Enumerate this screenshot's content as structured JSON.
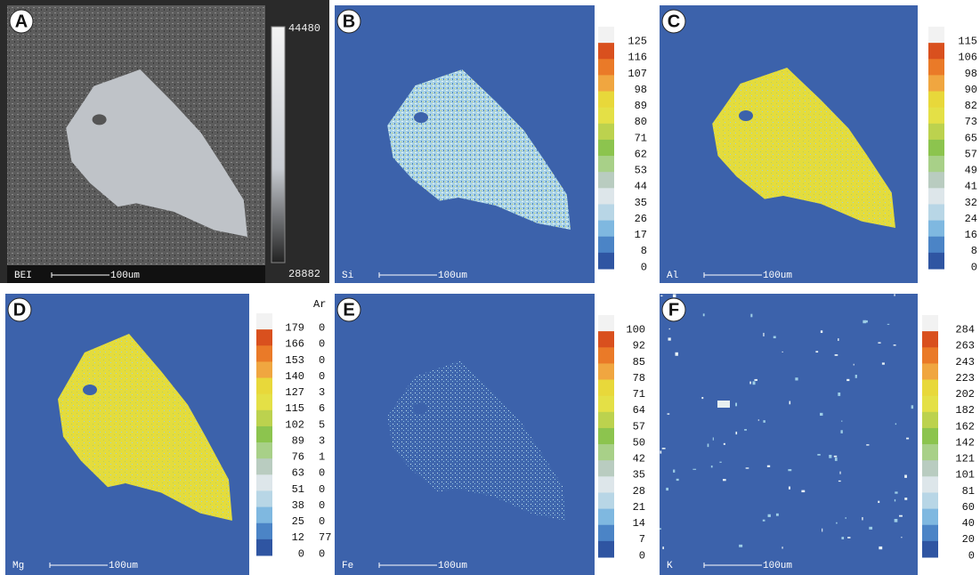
{
  "panels": [
    {
      "label": "A",
      "element": "BEI",
      "scale": "100um",
      "colorbar": [
        "44480",
        "28882"
      ]
    },
    {
      "label": "B",
      "element": "Si",
      "scale": "100um",
      "colorbar": [
        "125",
        "116",
        "107",
        "98",
        "89",
        "80",
        "71",
        "62",
        "53",
        "44",
        "35",
        "26",
        "17",
        "8",
        "0"
      ]
    },
    {
      "label": "C",
      "element": "Al",
      "scale": "100um",
      "colorbar": [
        "115",
        "106",
        "98",
        "90",
        "82",
        "73",
        "65",
        "57",
        "49",
        "41",
        "32",
        "24",
        "16",
        "8",
        "0"
      ]
    },
    {
      "label": "D",
      "element": "Mg",
      "scale": "100um",
      "colorbar": [
        "179",
        "166",
        "153",
        "140",
        "127",
        "115",
        "102",
        "89",
        "76",
        "63",
        "51",
        "38",
        "25",
        "12",
        "0"
      ],
      "side_title": "Ar",
      "side_column": [
        "0",
        "0",
        "0",
        "0",
        "3",
        "6",
        "5",
        "3",
        "1",
        "0",
        "0",
        "0",
        "0",
        "77",
        "0"
      ]
    },
    {
      "label": "E",
      "element": "Fe",
      "scale": "100um",
      "colorbar": [
        "100",
        "92",
        "85",
        "78",
        "71",
        "64",
        "57",
        "50",
        "42",
        "35",
        "28",
        "21",
        "14",
        "7",
        "0"
      ]
    },
    {
      "label": "F",
      "element": "K",
      "scale": "100um",
      "colorbar": [
        "284",
        "263",
        "243",
        "223",
        "202",
        "182",
        "162",
        "142",
        "121",
        "101",
        "81",
        "60",
        "40",
        "20",
        "0"
      ]
    }
  ]
}
